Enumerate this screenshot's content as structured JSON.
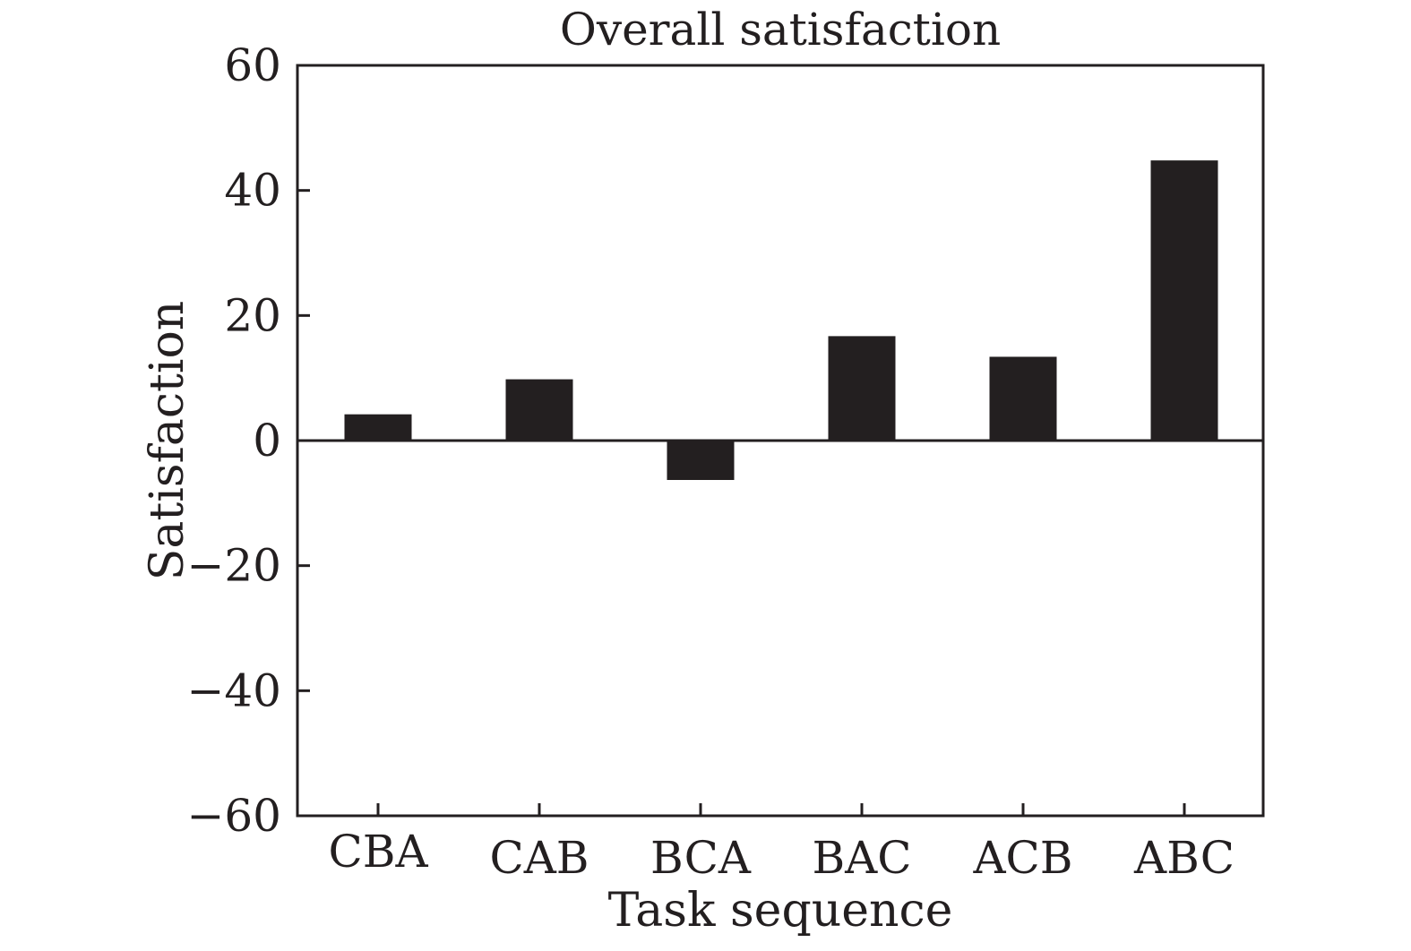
{
  "chart_data": {
    "type": "bar",
    "title": "Overall satisfaction",
    "xlabel": "Task sequence",
    "ylabel": "Satisfaction",
    "categories": [
      "CBA",
      "CAB",
      "BCA",
      "BAC",
      "ACB",
      "ABC"
    ],
    "values": [
      4.2,
      9.8,
      -6.3,
      16.7,
      13.4,
      44.8
    ],
    "ylim": [
      -60,
      60
    ],
    "yticks": [
      60,
      40,
      20,
      0,
      -20,
      -40,
      -60
    ],
    "ytick_labels": [
      "60",
      "40",
      "20",
      "0",
      "−20",
      "−40",
      "−60"
    ],
    "grid": false,
    "legend": "none",
    "colors": {
      "bar": "#231f20",
      "axis": "#231f20",
      "background": "#ffffff"
    }
  }
}
